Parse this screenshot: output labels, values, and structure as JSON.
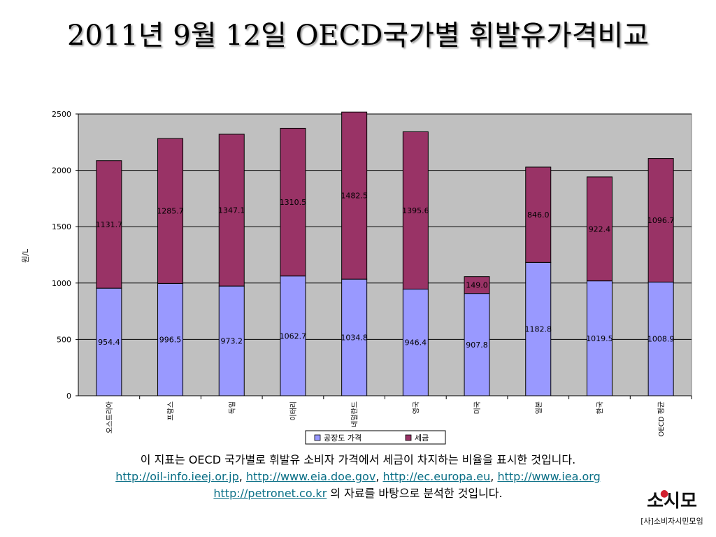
{
  "chart_data": {
    "type": "bar",
    "stacked": true,
    "title": "2011년 9월 12일 OECD국가별 휘발유가격비교",
    "ylabel": "원/L",
    "xlabel": "",
    "ylim": [
      0,
      2500
    ],
    "yticks": [
      0,
      500,
      1000,
      1500,
      2000,
      2500
    ],
    "grid": true,
    "legend": "bottom",
    "categories": [
      "오스트리아",
      "프랑스",
      "독일",
      "이태리",
      "네덜란드",
      "영국",
      "미국",
      "일본",
      "한국",
      "OECD 평균"
    ],
    "series": [
      {
        "name": "공장도 가격",
        "color": "#9999ff",
        "values": [
          954.4,
          996.5,
          973.2,
          1062.7,
          1034.8,
          946.4,
          907.8,
          1182.8,
          1019.5,
          1008.9
        ],
        "labels": [
          "954.4",
          "996.5",
          "973.2",
          "1062.7",
          "1034.8",
          "946.4",
          "907.8",
          "1182.8",
          "1019.5",
          "1008.9"
        ]
      },
      {
        "name": "세금",
        "color": "#993366",
        "values": [
          1131.7,
          1285.7,
          1347.1,
          1310.5,
          1482.5,
          1395.6,
          149.0,
          846.0,
          922.4,
          1096.7
        ],
        "labels": [
          "1131.7",
          "1285.7",
          "1347.1",
          "1310.5",
          "1482.5",
          "1395.6",
          "149.0",
          "846.0",
          "922.4",
          "1096.7"
        ]
      }
    ],
    "plot_background": "#c0c0c0"
  },
  "footer": {
    "line1": "이 지표는 OECD 국가별로 휘발유 소비자 가격에서 세금이 차지하는 비율을 표시한 것입니다.",
    "links": [
      "http://oil-info.ieej.or.jp",
      "http://www.eia.doe.gov",
      "http://ec.europa.eu",
      "http://www.iea.org"
    ],
    "separator": ", ",
    "line3_link": "http://petronet.co.kr",
    "line3_text": " 의 자료를 바탕으로 분석한 것입니다."
  },
  "logo": {
    "main": "소시모",
    "sub": "[사]소비자시민모임"
  }
}
